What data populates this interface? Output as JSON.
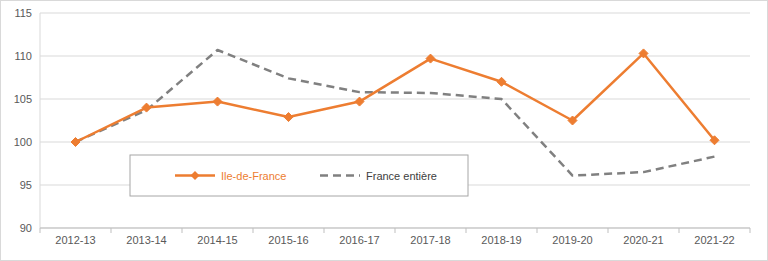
{
  "chart_data": {
    "type": "line",
    "categories": [
      "2012-13",
      "2013-14",
      "2014-15",
      "2015-16",
      "2016-17",
      "2017-18",
      "2018-19",
      "2019-20",
      "2020-21",
      "2021-22"
    ],
    "series": [
      {
        "name": "Ile-de-France",
        "color": "#ed7d31",
        "marker": "diamond",
        "line_style": "solid",
        "values": [
          100,
          104,
          104.7,
          102.9,
          104.7,
          109.7,
          107,
          102.5,
          110.3,
          100.2
        ]
      },
      {
        "name": "France entière",
        "color": "#808080",
        "marker": "none",
        "line_style": "dashed",
        "values": [
          100,
          103.7,
          110.7,
          107.4,
          105.8,
          105.7,
          105,
          96.1,
          96.5,
          98.3
        ]
      }
    ],
    "ylim": [
      90,
      115
    ],
    "yticks": [
      90,
      95,
      100,
      105,
      110,
      115
    ],
    "grid": true,
    "legend": "lower left"
  }
}
